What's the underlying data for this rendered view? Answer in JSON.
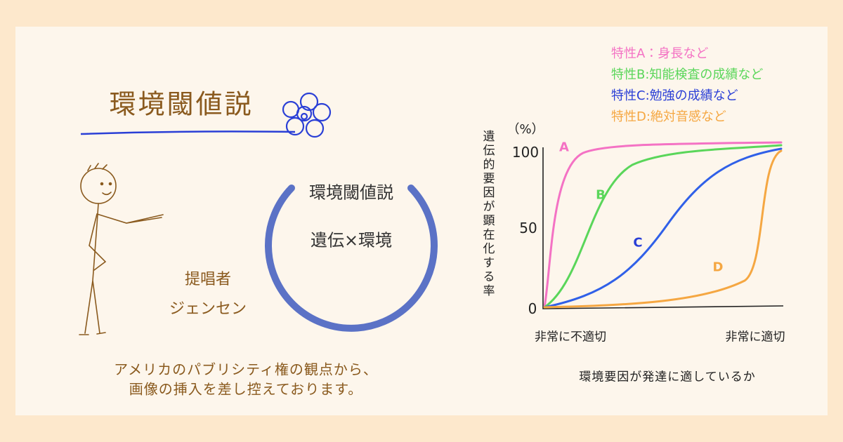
{
  "header": {
    "title": "環境閾値説"
  },
  "circle": {
    "title": "環境閾値説",
    "body": "遺伝×環境"
  },
  "proposer": {
    "label": "提唱者",
    "name": "ジェンセン"
  },
  "notice": [
    "アメリカのパブリシティ権の観点から、",
    "画像の挿入を差し控えております。"
  ],
  "legend": [
    "特性A：身長など",
    "特性B:知能検査の成績など",
    "特性C:勉強の成績など",
    "特性D:絶対音感など"
  ],
  "graph": {
    "unit": "（%）",
    "y_title": "遺伝的要因が顕在化する率",
    "y_ticks": [
      "100",
      "50",
      "0"
    ],
    "curves": [
      "A",
      "B",
      "C",
      "D"
    ],
    "x_labels": [
      "非常に不適切",
      "非常に適切"
    ],
    "x_title": "環境要因が発達に適しているか"
  }
}
